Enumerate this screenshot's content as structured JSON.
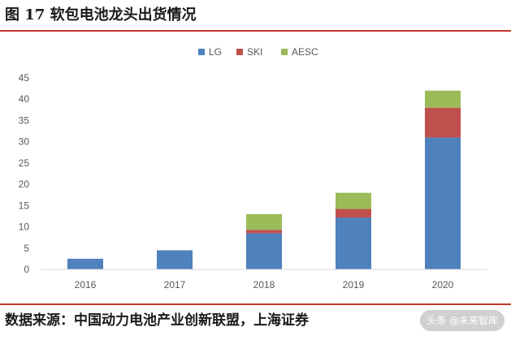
{
  "figure": {
    "title": "图 17 软包电池龙头出货情况",
    "source": "数据来源：中国动力电池产业创新联盟，上海证券",
    "watermark": "头条 @未来智库"
  },
  "colors": {
    "rule": "#c0392b",
    "LG": "#4f81bd",
    "SKI": "#c0504d",
    "AESC": "#9bbb59"
  },
  "chart_data": {
    "type": "bar",
    "stacked": true,
    "categories": [
      "2016",
      "2017",
      "2018",
      "2019",
      "2020"
    ],
    "series": [
      {
        "name": "LG",
        "values": [
          2.5,
          4.5,
          8.5,
          12.2,
          31
        ]
      },
      {
        "name": "SKI",
        "values": [
          0,
          0,
          0.8,
          2,
          7
        ]
      },
      {
        "name": "AESC",
        "values": [
          0,
          0,
          3.7,
          3.8,
          4
        ]
      }
    ],
    "yticks": [
      0,
      5,
      10,
      15,
      20,
      25,
      30,
      35,
      40,
      45
    ],
    "ylim": [
      0,
      45
    ],
    "legend_position": "top-center",
    "grid": false,
    "xlabel": "",
    "ylabel": ""
  }
}
